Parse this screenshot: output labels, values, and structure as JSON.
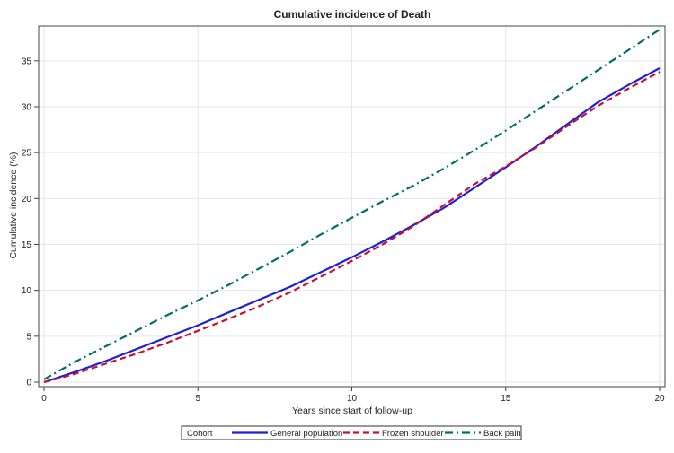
{
  "chart_data": {
    "type": "line",
    "title": "Cumulative incidence of Death",
    "xlabel": "Years since start of follow-up",
    "ylabel": "Cumulative incidence (%)",
    "xlim": [
      0,
      20
    ],
    "ylim": [
      0,
      38.5
    ],
    "x_ticks": [
      0,
      5,
      10,
      15,
      20
    ],
    "y_ticks": [
      0,
      5,
      10,
      15,
      20,
      25,
      30,
      35
    ],
    "grid": true,
    "legend": {
      "title": "Cohort",
      "placement": "bottom-center"
    },
    "series": [
      {
        "name": "General population",
        "color": "#1f1fd6",
        "dash": "solid",
        "points": [
          [
            0,
            0
          ],
          [
            1,
            1.1
          ],
          [
            2,
            2.3
          ],
          [
            3,
            3.6
          ],
          [
            4,
            4.9
          ],
          [
            5,
            6.2
          ],
          [
            6,
            7.6
          ],
          [
            7,
            9.0
          ],
          [
            8,
            10.4
          ],
          [
            9,
            12.0
          ],
          [
            10,
            13.6
          ],
          [
            11,
            15.3
          ],
          [
            12,
            17.1
          ],
          [
            13,
            19.0
          ],
          [
            14,
            21.2
          ],
          [
            15,
            23.4
          ],
          [
            16,
            25.7
          ],
          [
            17,
            28.1
          ],
          [
            18,
            30.5
          ],
          [
            19,
            32.4
          ],
          [
            20,
            34.2
          ]
        ]
      },
      {
        "name": "Frozen shoulder",
        "color": "#c8102e",
        "dash": "dashed",
        "points": [
          [
            0,
            0
          ],
          [
            1,
            0.9
          ],
          [
            2,
            2.0
          ],
          [
            3,
            3.1
          ],
          [
            4,
            4.3
          ],
          [
            5,
            5.6
          ],
          [
            6,
            6.9
          ],
          [
            7,
            8.3
          ],
          [
            8,
            9.8
          ],
          [
            9,
            11.5
          ],
          [
            10,
            13.2
          ],
          [
            11,
            15.0
          ],
          [
            12,
            17.0
          ],
          [
            13,
            19.3
          ],
          [
            14,
            21.6
          ],
          [
            15,
            23.5
          ],
          [
            16,
            25.6
          ],
          [
            17,
            27.9
          ],
          [
            18,
            30.1
          ],
          [
            19,
            32.0
          ],
          [
            20,
            33.8
          ]
        ]
      },
      {
        "name": "Back pain",
        "color": "#006d6d",
        "dash": "dashdot",
        "points": [
          [
            0,
            0.3
          ],
          [
            1,
            2.2
          ],
          [
            2,
            3.9
          ],
          [
            3,
            5.6
          ],
          [
            4,
            7.3
          ],
          [
            5,
            8.9
          ],
          [
            6,
            10.6
          ],
          [
            7,
            12.4
          ],
          [
            8,
            14.2
          ],
          [
            9,
            16.1
          ],
          [
            10,
            17.9
          ],
          [
            11,
            19.7
          ],
          [
            12,
            21.4
          ],
          [
            13,
            23.3
          ],
          [
            14,
            25.3
          ],
          [
            15,
            27.4
          ],
          [
            16,
            29.6
          ],
          [
            17,
            31.8
          ],
          [
            18,
            34.0
          ],
          [
            19,
            36.2
          ],
          [
            20,
            38.4
          ]
        ]
      }
    ]
  }
}
